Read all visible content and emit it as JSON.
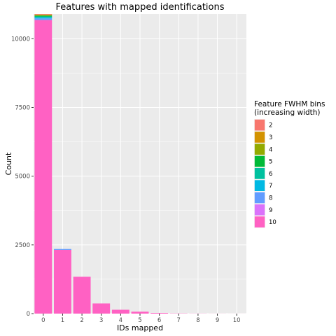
{
  "chart_data": {
    "type": "bar",
    "stacked": true,
    "title": "Features with mapped identifications",
    "xlabel": "IDs mapped",
    "ylabel": "Count",
    "categories": [
      "0",
      "1",
      "2",
      "3",
      "4",
      "5",
      "6",
      "7",
      "8",
      "9",
      "10"
    ],
    "ylim": [
      0,
      10900
    ],
    "yticks": [
      0,
      2500,
      5000,
      7500,
      10000
    ],
    "grid": true,
    "legend_position": "right",
    "legend_title": "Feature FWHM bins\n(increasing width)",
    "series": [
      {
        "name": "2",
        "color": "#F8766D",
        "values": [
          20,
          0,
          0,
          0,
          0,
          0,
          0,
          0,
          0,
          0,
          0
        ]
      },
      {
        "name": "3",
        "color": "#D39200",
        "values": [
          20,
          0,
          0,
          0,
          0,
          0,
          0,
          0,
          0,
          0,
          0
        ]
      },
      {
        "name": "4",
        "color": "#93AA00",
        "values": [
          20,
          0,
          0,
          0,
          0,
          0,
          0,
          0,
          0,
          0,
          0
        ]
      },
      {
        "name": "5",
        "color": "#00BA38",
        "values": [
          30,
          0,
          0,
          0,
          0,
          0,
          0,
          0,
          0,
          0,
          0
        ]
      },
      {
        "name": "6",
        "color": "#00C19F",
        "values": [
          30,
          0,
          0,
          0,
          0,
          0,
          0,
          0,
          0,
          0,
          0
        ]
      },
      {
        "name": "7",
        "color": "#00B9E3",
        "values": [
          40,
          0,
          0,
          0,
          0,
          0,
          0,
          0,
          0,
          0,
          0
        ]
      },
      {
        "name": "8",
        "color": "#619CFF",
        "values": [
          60,
          30,
          0,
          0,
          0,
          0,
          0,
          0,
          0,
          0,
          0
        ]
      },
      {
        "name": "9",
        "color": "#DB72FB",
        "values": [
          0,
          0,
          0,
          0,
          0,
          0,
          0,
          0,
          0,
          0,
          0
        ]
      },
      {
        "name": "10",
        "color": "#FF61C3",
        "values": [
          10680,
          2320,
          1340,
          370,
          140,
          70,
          25,
          8,
          4,
          2,
          1
        ]
      }
    ]
  },
  "panel_background": "#EBEBEB",
  "grid_color": "#FFFFFF"
}
